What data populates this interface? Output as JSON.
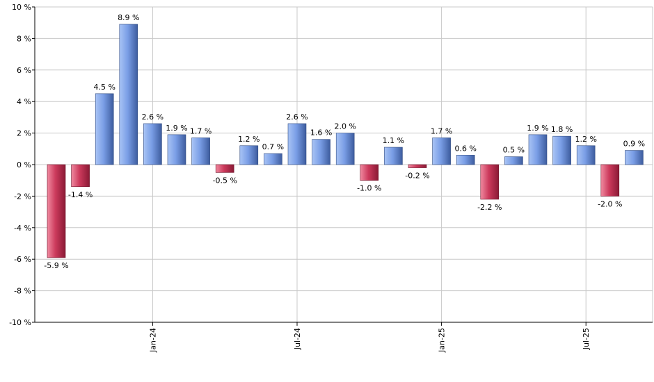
{
  "chart_data": {
    "type": "bar",
    "title": "",
    "xlabel": "",
    "ylabel": "",
    "unit": " %",
    "ylim": [
      -10,
      10
    ],
    "ytick_step": 2,
    "grid": true,
    "values": [
      -5.9,
      -1.4,
      4.5,
      8.9,
      2.6,
      1.9,
      1.7,
      -0.5,
      1.2,
      0.7,
      2.6,
      1.6,
      2.0,
      -1.0,
      1.1,
      -0.2,
      1.7,
      0.6,
      -2.2,
      0.5,
      1.9,
      1.8,
      1.2,
      -2.0,
      0.9
    ],
    "data_labels": [
      "-5.9 %",
      "-1.4 %",
      "4.5 %",
      "8.9 %",
      "2.6 %",
      "1.9 %",
      "1.7 %",
      "-0.5 %",
      "1.2 %",
      "0.7 %",
      "2.6 %",
      "1.6 %",
      "2.0 %",
      "-1.0 %",
      "1.1 %",
      "-0.2 %",
      "1.7 %",
      "0.6 %",
      "-2.2 %",
      "0.5 %",
      "1.9 %",
      "1.8 %",
      "1.2 %",
      "-2.0 %",
      "0.9 %"
    ],
    "y_tick_labels": [
      "10 %",
      "8 %",
      "6 %",
      "4 %",
      "2 %",
      "0 %",
      "-2 %",
      "-4 %",
      "-6 %",
      "-8 %",
      "-10 %"
    ],
    "x_tick_labels": [
      {
        "label": "Jan-24",
        "bar_index": 4
      },
      {
        "label": "Jul-24",
        "bar_index": 10
      },
      {
        "label": "Jan-25",
        "bar_index": 16
      },
      {
        "label": "Jul-25",
        "bar_index": 22
      }
    ],
    "colors": {
      "positive_light": "#a9c4f5",
      "positive_dark": "#3d5c9e",
      "negative_light": "#f08aa0",
      "negative_dark": "#8a1a35",
      "grid": "#c8c8c8",
      "axis": "#000000"
    }
  }
}
